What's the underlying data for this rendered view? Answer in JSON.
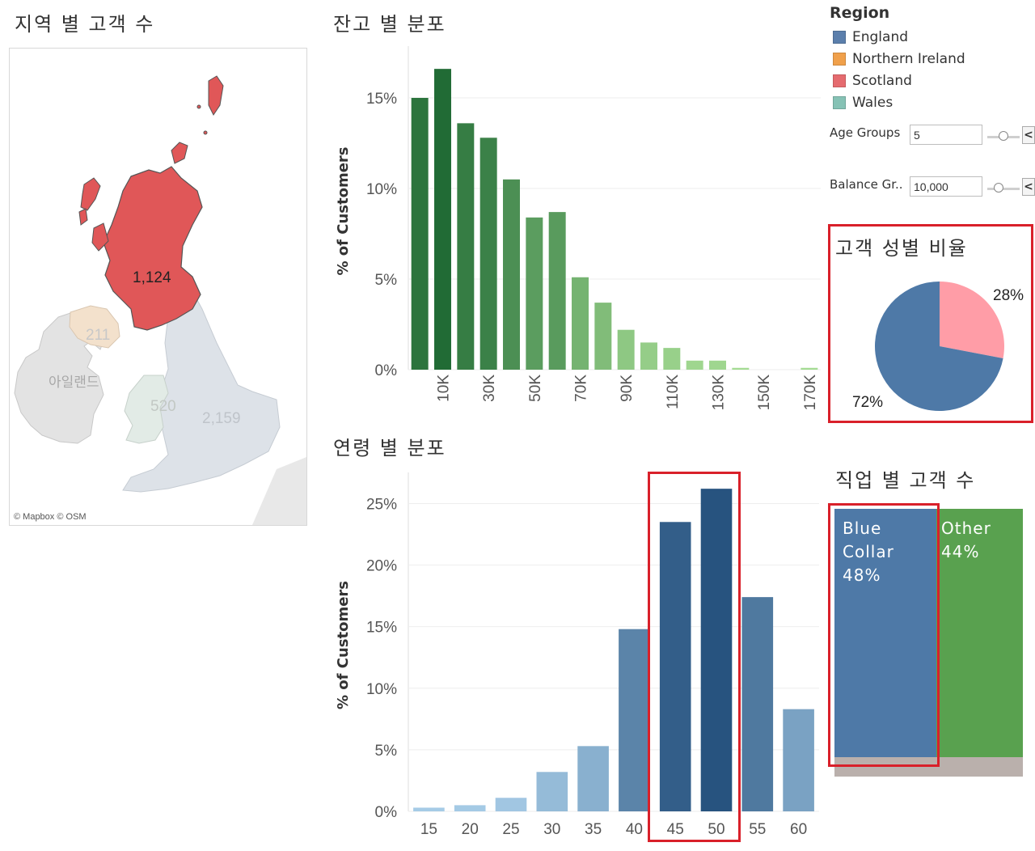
{
  "map": {
    "title": "지역 별 고객 수",
    "labels": {
      "scotland": "1,124",
      "northern_ireland": "211",
      "ireland": "아일랜드",
      "wales": "520",
      "england": "2,159"
    },
    "credit": "© Mapbox © OSM",
    "colors": {
      "scotland": "#e05758",
      "northern_ireland": "#f5e3cf",
      "wales": "#e4ece8",
      "england": "#dfe3e8",
      "land": "#e9e9e9"
    }
  },
  "legend": {
    "title": "Region",
    "items": [
      {
        "label": "England",
        "color": "#5b7fac"
      },
      {
        "label": "Northern Ireland",
        "color": "#f0a04b"
      },
      {
        "label": "Scotland",
        "color": "#e56b6f"
      },
      {
        "label": "Wales",
        "color": "#86c2b5"
      }
    ]
  },
  "params": {
    "age_groups": {
      "label": "Age Groups",
      "value": "5",
      "stepper": "<"
    },
    "balance_groups": {
      "label": "Balance Gr..",
      "value": "10,000",
      "stepper": "<"
    }
  },
  "gender": {
    "title": "고객 성별 비율",
    "chart_data": {
      "type": "pie",
      "slices": [
        {
          "label": "72%",
          "value": 72,
          "color": "#4e79a7"
        },
        {
          "label": "28%",
          "value": 28,
          "color": "#ff9da7"
        }
      ]
    }
  },
  "occupation": {
    "title": "직업 별 고객 수",
    "tiles": [
      {
        "name": "Blue",
        "name2": "Collar",
        "pct": "48%",
        "value": 48,
        "color": "#4e79a7"
      },
      {
        "name": "Other",
        "pct": "44%",
        "value": 44,
        "color": "#59a14f"
      },
      {
        "value": 8,
        "color": "#bab0ac"
      }
    ]
  },
  "balance_chart": {
    "title": "잔고 별 분포",
    "chart_data": {
      "type": "bar",
      "ylabel": "% of Customers",
      "ylim": [
        0,
        17.5
      ],
      "yticks": [
        "0%",
        "5%",
        "10%",
        "15%"
      ],
      "ytick_values": [
        0,
        5,
        10,
        15
      ],
      "x": [
        0,
        10,
        20,
        30,
        40,
        50,
        60,
        70,
        80,
        90,
        100,
        110,
        120,
        130,
        140,
        150,
        160,
        170
      ],
      "xticks": [
        "10K",
        "30K",
        "50K",
        "70K",
        "90K",
        "110K",
        "130K",
        "150K",
        "170K"
      ],
      "values": [
        15.0,
        16.6,
        13.6,
        12.8,
        10.5,
        8.4,
        8.7,
        5.1,
        3.7,
        2.2,
        1.5,
        1.2,
        0.5,
        0.5,
        0.1,
        0.0,
        0.0,
        0.1
      ]
    }
  },
  "age_chart": {
    "title": "연령 별 분포",
    "chart_data": {
      "type": "bar",
      "ylabel": "% of Customers",
      "ylim": [
        0,
        27
      ],
      "yticks": [
        "0%",
        "5%",
        "10%",
        "15%",
        "20%",
        "25%"
      ],
      "ytick_values": [
        0,
        5,
        10,
        15,
        20,
        25
      ],
      "categories": [
        "15",
        "20",
        "25",
        "30",
        "35",
        "40",
        "45",
        "50",
        "55",
        "60"
      ],
      "values": [
        0.3,
        0.5,
        1.1,
        3.2,
        5.3,
        14.8,
        23.5,
        26.2,
        17.4,
        8.3
      ]
    }
  }
}
